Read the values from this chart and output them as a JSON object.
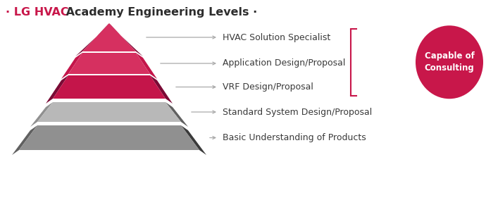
{
  "title_dot_prefix": "· ",
  "title_lg_hvac": "LG HVAC",
  "title_rest": " Academy Engineering Levels ·",
  "title_color_lg": "#c8174a",
  "title_color_rest": "#2d2d2d",
  "title_fontsize": 11.5,
  "labels": [
    "HVAC Solution Specialist",
    "Application Design/Proposal",
    "VRF Design/Proposal",
    "Standard System Design/Proposal",
    "Basic Understanding of Products"
  ],
  "capable_label": "Capable of\nConsulting",
  "capable_color": "#c8174a",
  "capable_text_color": "#ffffff",
  "pink_dark": "#7a0a35",
  "pink_mid": "#c4154a",
  "pink_bright": "#d63060",
  "gray_vdark": "#3a3a3a",
  "gray_dark": "#606060",
  "gray_mid": "#909090",
  "gray_light": "#b8b8b8",
  "gray_lighter": "#d0d0d0",
  "background": "#ffffff",
  "bracket_color": "#c8174a",
  "arrow_color": "#aaaaaa",
  "label_color": "#3a3a3a",
  "label_fontsize": 9.0
}
